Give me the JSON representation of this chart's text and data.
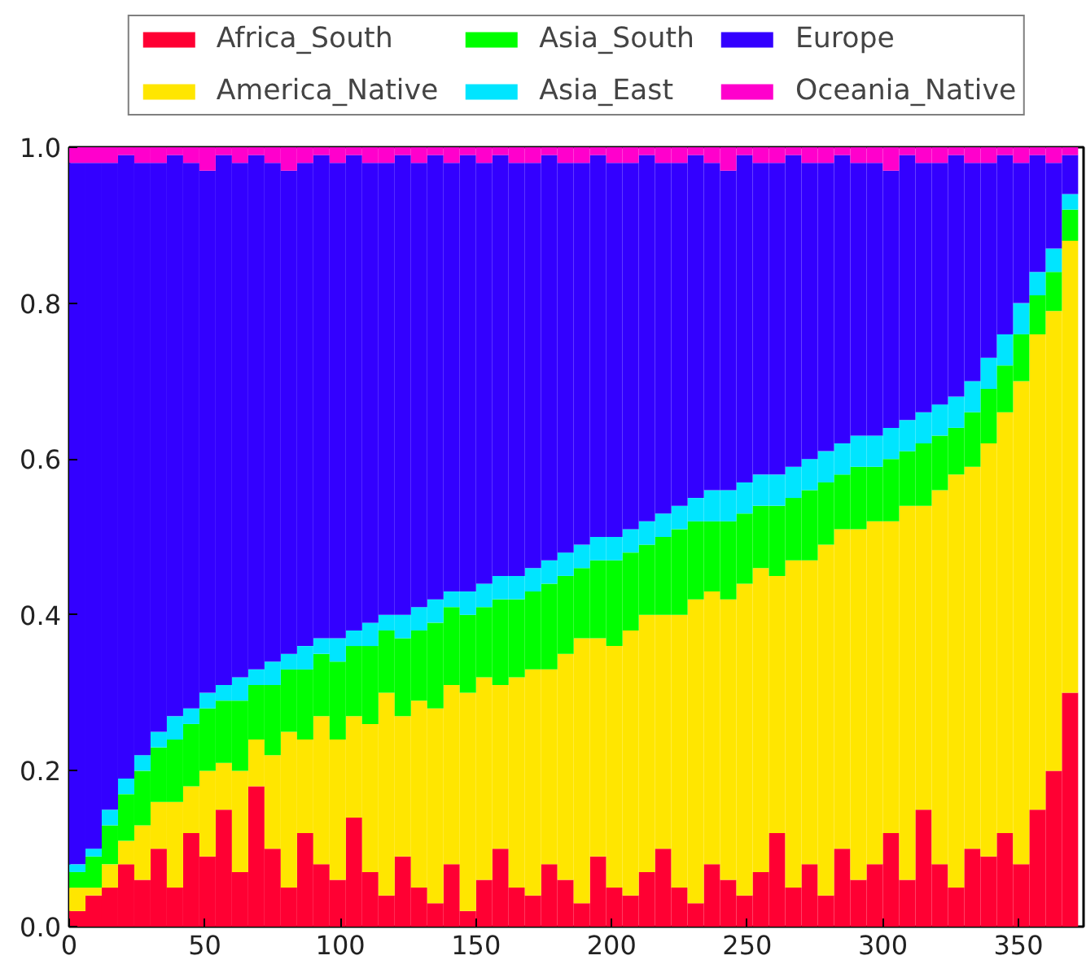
{
  "chart_data": {
    "type": "bar",
    "stacked": true,
    "x": [
      3,
      9,
      15,
      21,
      27,
      33,
      39,
      45,
      51,
      57,
      63,
      69,
      75,
      81,
      87,
      93,
      99,
      105,
      111,
      117,
      123,
      129,
      135,
      141,
      147,
      153,
      159,
      165,
      171,
      177,
      183,
      189,
      195,
      201,
      207,
      213,
      219,
      225,
      231,
      237,
      243,
      249,
      255,
      261,
      267,
      273,
      279,
      285,
      291,
      297,
      303,
      309,
      315,
      321,
      327,
      333,
      339,
      345,
      351,
      357,
      363,
      369
    ],
    "series": [
      {
        "name": "Africa_South",
        "color": "#ff0033",
        "values": [
          0.02,
          0.04,
          0.05,
          0.08,
          0.06,
          0.1,
          0.05,
          0.12,
          0.09,
          0.15,
          0.07,
          0.18,
          0.1,
          0.05,
          0.12,
          0.08,
          0.06,
          0.14,
          0.07,
          0.04,
          0.09,
          0.05,
          0.03,
          0.08,
          0.02,
          0.06,
          0.1,
          0.05,
          0.04,
          0.08,
          0.06,
          0.03,
          0.09,
          0.05,
          0.04,
          0.07,
          0.1,
          0.05,
          0.03,
          0.08,
          0.06,
          0.04,
          0.07,
          0.12,
          0.05,
          0.08,
          0.04,
          0.1,
          0.06,
          0.08,
          0.12,
          0.06,
          0.15,
          0.08,
          0.05,
          0.1,
          0.09,
          0.12,
          0.08,
          0.15,
          0.2,
          0.3
        ]
      },
      {
        "name": "America_Native",
        "color": "#ffe600",
        "values": [
          0.03,
          0.01,
          0.03,
          0.03,
          0.07,
          0.06,
          0.11,
          0.06,
          0.11,
          0.06,
          0.13,
          0.06,
          0.12,
          0.2,
          0.12,
          0.19,
          0.18,
          0.13,
          0.19,
          0.26,
          0.18,
          0.24,
          0.25,
          0.23,
          0.28,
          0.26,
          0.21,
          0.27,
          0.29,
          0.25,
          0.29,
          0.34,
          0.28,
          0.31,
          0.34,
          0.33,
          0.3,
          0.35,
          0.39,
          0.35,
          0.36,
          0.4,
          0.39,
          0.33,
          0.42,
          0.39,
          0.45,
          0.41,
          0.45,
          0.44,
          0.4,
          0.48,
          0.39,
          0.48,
          0.53,
          0.49,
          0.53,
          0.54,
          0.62,
          0.61,
          0.59,
          0.58
        ]
      },
      {
        "name": "Asia_South",
        "color": "#00ff00",
        "values": [
          0.02,
          0.04,
          0.05,
          0.06,
          0.07,
          0.07,
          0.08,
          0.08,
          0.08,
          0.08,
          0.09,
          0.07,
          0.09,
          0.08,
          0.09,
          0.08,
          0.1,
          0.09,
          0.1,
          0.08,
          0.1,
          0.09,
          0.11,
          0.1,
          0.1,
          0.09,
          0.11,
          0.1,
          0.1,
          0.11,
          0.1,
          0.09,
          0.1,
          0.11,
          0.1,
          0.09,
          0.1,
          0.11,
          0.1,
          0.09,
          0.1,
          0.09,
          0.08,
          0.09,
          0.08,
          0.09,
          0.08,
          0.07,
          0.08,
          0.07,
          0.08,
          0.07,
          0.08,
          0.07,
          0.06,
          0.07,
          0.07,
          0.06,
          0.06,
          0.05,
          0.05,
          0.04
        ]
      },
      {
        "name": "Asia_East",
        "color": "#00e5ff",
        "values": [
          0.01,
          0.01,
          0.02,
          0.02,
          0.02,
          0.02,
          0.03,
          0.02,
          0.02,
          0.02,
          0.03,
          0.02,
          0.03,
          0.02,
          0.03,
          0.02,
          0.03,
          0.02,
          0.03,
          0.02,
          0.03,
          0.03,
          0.03,
          0.02,
          0.03,
          0.03,
          0.03,
          0.03,
          0.03,
          0.03,
          0.03,
          0.03,
          0.03,
          0.03,
          0.03,
          0.03,
          0.03,
          0.03,
          0.03,
          0.04,
          0.04,
          0.04,
          0.04,
          0.04,
          0.04,
          0.04,
          0.04,
          0.04,
          0.04,
          0.04,
          0.04,
          0.04,
          0.04,
          0.04,
          0.04,
          0.04,
          0.04,
          0.04,
          0.04,
          0.03,
          0.03,
          0.02
        ]
      },
      {
        "name": "Europe",
        "color": "#3300ff",
        "values": [
          0.9,
          0.88,
          0.83,
          0.8,
          0.76,
          0.73,
          0.72,
          0.7,
          0.67,
          0.68,
          0.66,
          0.66,
          0.64,
          0.62,
          0.62,
          0.62,
          0.61,
          0.61,
          0.59,
          0.58,
          0.59,
          0.57,
          0.57,
          0.55,
          0.56,
          0.54,
          0.54,
          0.53,
          0.52,
          0.52,
          0.5,
          0.49,
          0.49,
          0.48,
          0.47,
          0.47,
          0.45,
          0.44,
          0.44,
          0.42,
          0.41,
          0.42,
          0.4,
          0.4,
          0.4,
          0.38,
          0.37,
          0.37,
          0.35,
          0.35,
          0.33,
          0.34,
          0.32,
          0.31,
          0.31,
          0.28,
          0.25,
          0.23,
          0.18,
          0.15,
          0.11,
          0.05
        ]
      },
      {
        "name": "Oceania_Native",
        "color": "#ff00cc",
        "values": [
          0.02,
          0.02,
          0.02,
          0.01,
          0.02,
          0.02,
          0.01,
          0.02,
          0.03,
          0.01,
          0.02,
          0.01,
          0.02,
          0.03,
          0.02,
          0.01,
          0.02,
          0.01,
          0.02,
          0.02,
          0.01,
          0.02,
          0.01,
          0.02,
          0.01,
          0.02,
          0.01,
          0.02,
          0.02,
          0.01,
          0.02,
          0.02,
          0.01,
          0.02,
          0.02,
          0.01,
          0.02,
          0.02,
          0.01,
          0.02,
          0.03,
          0.01,
          0.02,
          0.02,
          0.01,
          0.02,
          0.02,
          0.01,
          0.02,
          0.02,
          0.03,
          0.01,
          0.02,
          0.02,
          0.01,
          0.02,
          0.02,
          0.01,
          0.02,
          0.01,
          0.02,
          0.01
        ]
      }
    ],
    "xlim": [
      0,
      374
    ],
    "ylim": [
      0,
      1
    ],
    "xticks": [
      0,
      50,
      100,
      150,
      200,
      250,
      300,
      350
    ],
    "yticks": [
      {
        "value": 0,
        "label": "0.0"
      },
      {
        "value": 0.2,
        "label": "0.2"
      },
      {
        "value": 0.4,
        "label": "0.4"
      },
      {
        "value": 0.6,
        "label": "0.6"
      },
      {
        "value": 0.8,
        "label": "0.8"
      },
      {
        "value": 1,
        "label": "1.0"
      }
    ],
    "grid": false,
    "legend": "top"
  }
}
